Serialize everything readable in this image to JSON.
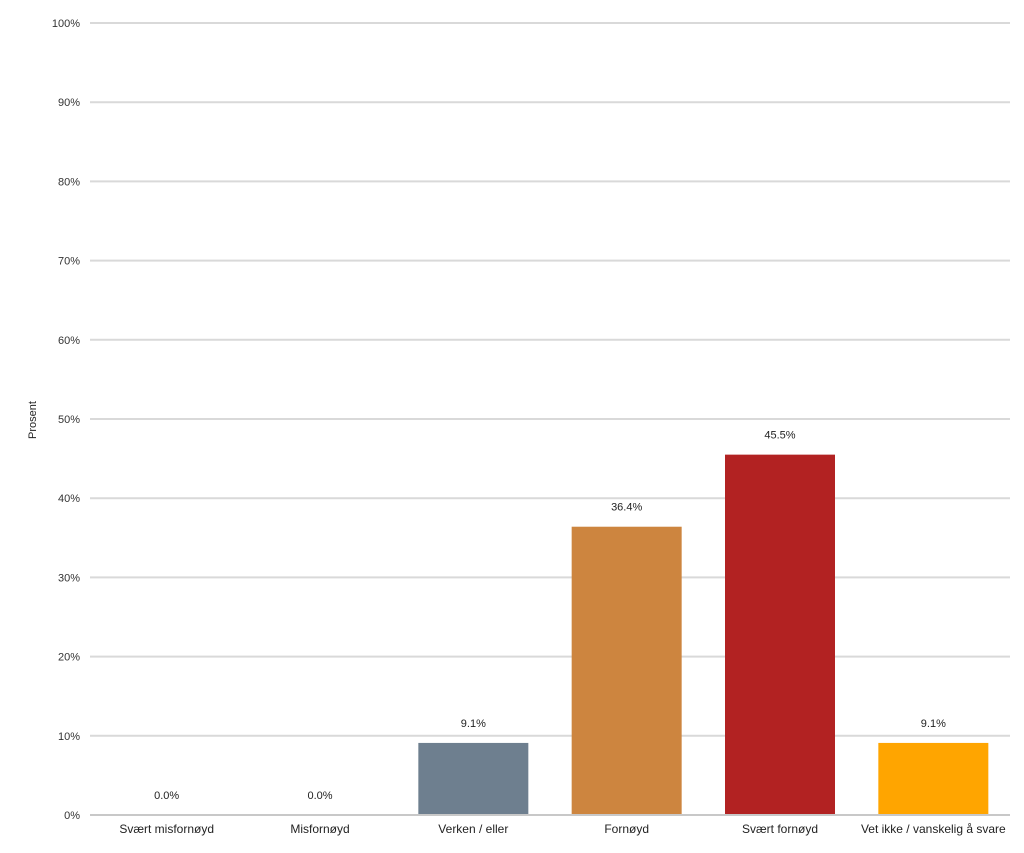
{
  "chart_data": {
    "type": "bar",
    "title": "",
    "xlabel": "",
    "ylabel": "Prosent",
    "ylim": [
      0,
      100
    ],
    "yticks": [
      "0%",
      "10%",
      "20%",
      "30%",
      "40%",
      "50%",
      "60%",
      "70%",
      "80%",
      "90%",
      "100%"
    ],
    "grid": true,
    "categories": [
      "Svært misfornøyd",
      "Misfornøyd",
      "Verken / eller",
      "Fornøyd",
      "Svært fornøyd",
      "Vet ikke / vanskelig å svare"
    ],
    "values": [
      0.0,
      0.0,
      9.1,
      36.4,
      45.5,
      9.1
    ],
    "data_labels": [
      "0.0%",
      "0.0%",
      "9.1%",
      "36.4%",
      "45.5%",
      "9.1%"
    ],
    "colors": [
      "#6E7F8F",
      "#6E7F8F",
      "#6E7F8F",
      "#CD853F",
      "#B22222",
      "#FFA500"
    ]
  }
}
